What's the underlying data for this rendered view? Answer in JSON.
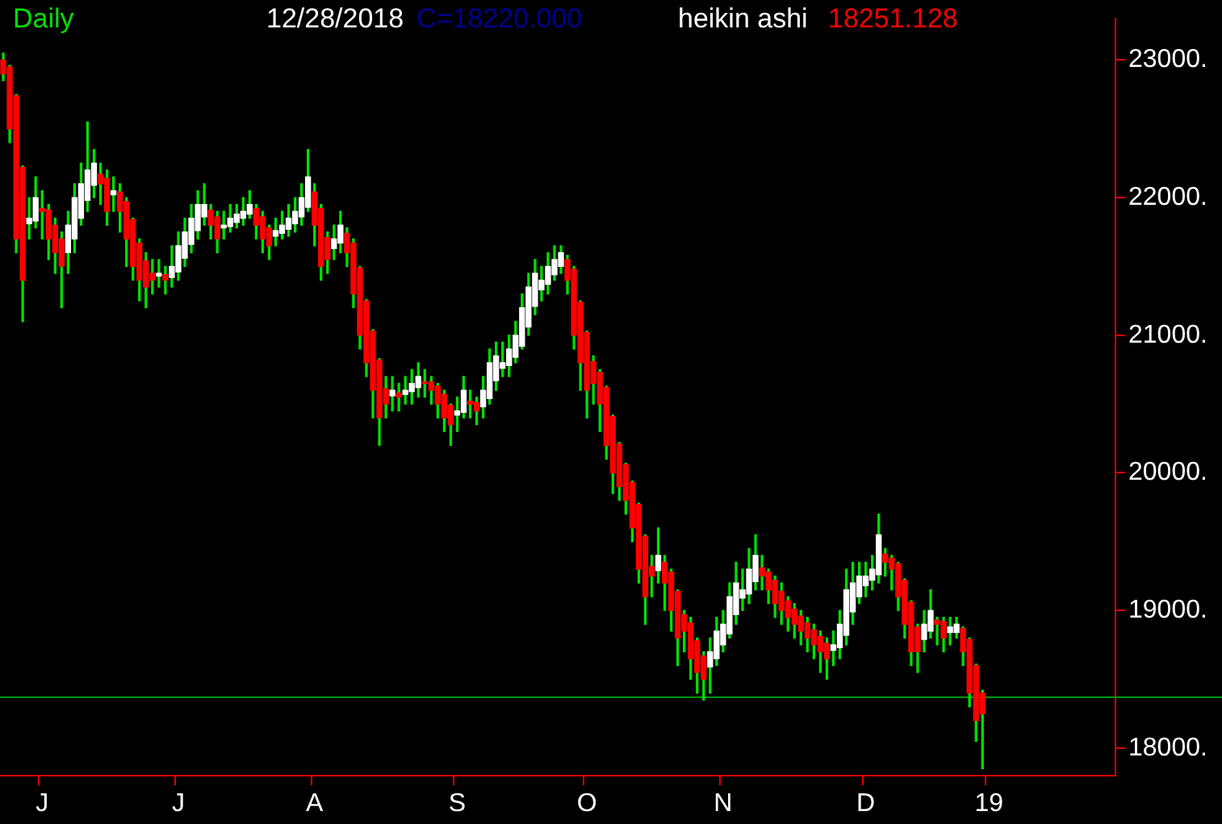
{
  "chart_data": {
    "type": "candlestick",
    "title": "Daily",
    "annotations": [
      "12/28/2018",
      "C=18220.000",
      "heikin ashi",
      "18251.128"
    ],
    "categories": [
      null,
      null,
      null,
      null,
      null,
      null,
      "J",
      null,
      null,
      null,
      null,
      null,
      null,
      null,
      null,
      null,
      null,
      null,
      null,
      null,
      null,
      null,
      null,
      null,
      null,
      null,
      null,
      "J",
      null,
      null,
      null,
      null,
      null,
      null,
      null,
      null,
      null,
      null,
      null,
      null,
      null,
      null,
      null,
      null,
      null,
      null,
      null,
      null,
      "A",
      null,
      null,
      null,
      null,
      null,
      null,
      null,
      null,
      null,
      null,
      null,
      null,
      null,
      null,
      null,
      null,
      null,
      null,
      null,
      null,
      null,
      "S",
      null,
      null,
      null,
      null,
      null,
      null,
      null,
      null,
      null,
      null,
      null,
      null,
      null,
      null,
      null,
      null,
      null,
      null,
      null,
      "O",
      null,
      null,
      null,
      null,
      null,
      null,
      null,
      null,
      null,
      null,
      null,
      null,
      null,
      null,
      null,
      null,
      null,
      null,
      null,
      null,
      "N",
      null,
      null,
      null,
      null,
      null,
      null,
      null,
      null,
      null,
      null,
      null,
      null,
      null,
      null,
      null,
      null,
      null,
      null,
      null,
      null,
      null,
      "D",
      null,
      null,
      null,
      null,
      null,
      null,
      null,
      null,
      null,
      null,
      null,
      null,
      null,
      null,
      null,
      null,
      null,
      null,
      "19",
      null,
      null,
      null,
      null,
      null,
      null,
      null,
      null,
      null,
      null,
      null,
      null,
      null,
      null,
      null,
      null,
      null,
      null,
      null
    ],
    "ohlc": [
      [
        23000,
        23050,
        22850,
        22900
      ],
      [
        22950,
        22960,
        22400,
        22500
      ],
      [
        22740,
        22750,
        21600,
        21700
      ],
      [
        22220,
        22230,
        21100,
        21400
      ],
      [
        21810,
        22000,
        21700,
        21850
      ],
      [
        21830,
        22150,
        21780,
        22000
      ],
      [
        21920,
        22050,
        21700,
        21900
      ],
      [
        21910,
        21950,
        21550,
        21700
      ],
      [
        21800,
        21850,
        21450,
        21600
      ],
      [
        21700,
        21750,
        21200,
        21500
      ],
      [
        21600,
        21900,
        21450,
        21800
      ],
      [
        21700,
        22100,
        21600,
        22000
      ],
      [
        21850,
        22250,
        21800,
        22100
      ],
      [
        21980,
        22550,
        21900,
        22200
      ],
      [
        22090,
        22350,
        22000,
        22250
      ],
      [
        22170,
        22250,
        21950,
        22100
      ],
      [
        22140,
        22200,
        21800,
        21900
      ],
      [
        22020,
        22150,
        21900,
        22050
      ],
      [
        22040,
        22100,
        21750,
        21900
      ],
      [
        21970,
        22000,
        21500,
        21700
      ],
      [
        21840,
        21850,
        21400,
        21500
      ],
      [
        21670,
        21700,
        21250,
        21400
      ],
      [
        21540,
        21600,
        21200,
        21350
      ],
      [
        21450,
        21550,
        21300,
        21400
      ],
      [
        21430,
        21550,
        21350,
        21450
      ],
      [
        21440,
        21500,
        21300,
        21400
      ],
      [
        21420,
        21650,
        21350,
        21500
      ],
      [
        21460,
        21750,
        21400,
        21650
      ],
      [
        21560,
        21850,
        21500,
        21750
      ],
      [
        21660,
        21950,
        21600,
        21850
      ],
      [
        21760,
        22050,
        21700,
        21950
      ],
      [
        21860,
        22100,
        21800,
        21950
      ],
      [
        21910,
        21950,
        21700,
        21800
      ],
      [
        21860,
        21900,
        21600,
        21700
      ],
      [
        21780,
        21900,
        21700,
        21800
      ],
      [
        21790,
        21950,
        21750,
        21850
      ],
      [
        21820,
        21950,
        21780,
        21880
      ],
      [
        21850,
        22000,
        21800,
        21900
      ],
      [
        21880,
        22050,
        21850,
        21950
      ],
      [
        21920,
        21950,
        21700,
        21800
      ],
      [
        21860,
        21900,
        21600,
        21700
      ],
      [
        21780,
        21800,
        21550,
        21650
      ],
      [
        21720,
        21850,
        21650,
        21760
      ],
      [
        21740,
        21900,
        21700,
        21800
      ],
      [
        21770,
        21950,
        21720,
        21850
      ],
      [
        21810,
        22000,
        21750,
        21900
      ],
      [
        21860,
        22100,
        21800,
        22000
      ],
      [
        21930,
        22350,
        21900,
        22150
      ],
      [
        22040,
        22100,
        21650,
        21800
      ],
      [
        21920,
        21950,
        21400,
        21500
      ],
      [
        21710,
        21750,
        21450,
        21550
      ],
      [
        21630,
        21800,
        21550,
        21700
      ],
      [
        21670,
        21900,
        21600,
        21800
      ],
      [
        21740,
        21780,
        21500,
        21600
      ],
      [
        21670,
        21700,
        21200,
        21300
      ],
      [
        21490,
        21500,
        20900,
        21000
      ],
      [
        21250,
        21260,
        20700,
        20800
      ],
      [
        21030,
        21040,
        20400,
        20600
      ],
      [
        20820,
        20830,
        20200,
        20400
      ],
      [
        20610,
        20700,
        20400,
        20500
      ],
      [
        20560,
        20700,
        20450,
        20600
      ],
      [
        20580,
        20650,
        20450,
        20550
      ],
      [
        20570,
        20700,
        20500,
        20600
      ],
      [
        20590,
        20750,
        20500,
        20650
      ],
      [
        20620,
        20800,
        20550,
        20700
      ],
      [
        20660,
        20750,
        20550,
        20650
      ],
      [
        20660,
        20700,
        20500,
        20600
      ],
      [
        20630,
        20650,
        20400,
        20500
      ],
      [
        20570,
        20600,
        20300,
        20400
      ],
      [
        20490,
        20500,
        20200,
        20350
      ],
      [
        20420,
        20550,
        20300,
        20450
      ],
      [
        20440,
        20700,
        20400,
        20600
      ],
      [
        20520,
        20600,
        20400,
        20500
      ],
      [
        20510,
        20550,
        20350,
        20450
      ],
      [
        20480,
        20700,
        20400,
        20600
      ],
      [
        20540,
        20900,
        20500,
        20800
      ],
      [
        20670,
        20950,
        20600,
        20850
      ],
      [
        20760,
        20950,
        20700,
        20800
      ],
      [
        20780,
        21000,
        20700,
        20900
      ],
      [
        20840,
        21100,
        20800,
        21000
      ],
      [
        20920,
        21300,
        20900,
        21200
      ],
      [
        21060,
        21450,
        21000,
        21350
      ],
      [
        21210,
        21550,
        21150,
        21450
      ],
      [
        21330,
        21500,
        21250,
        21400
      ],
      [
        21370,
        21600,
        21300,
        21500
      ],
      [
        21440,
        21650,
        21400,
        21550
      ],
      [
        21500,
        21650,
        21450,
        21600
      ],
      [
        21550,
        21580,
        21300,
        21400
      ],
      [
        21480,
        21500,
        20900,
        21000
      ],
      [
        21240,
        21250,
        20600,
        20800
      ],
      [
        21020,
        21030,
        20400,
        20600
      ],
      [
        20810,
        20850,
        20500,
        20650
      ],
      [
        20730,
        20750,
        20300,
        20500
      ],
      [
        20620,
        20630,
        20100,
        20200
      ],
      [
        20410,
        20420,
        19850,
        20000
      ],
      [
        20210,
        20220,
        19800,
        19900
      ],
      [
        20060,
        20070,
        19700,
        19800
      ],
      [
        19930,
        19940,
        19500,
        19600
      ],
      [
        19770,
        19780,
        19200,
        19300
      ],
      [
        19540,
        19550,
        18900,
        19100
      ],
      [
        19320,
        19400,
        19100,
        19250
      ],
      [
        19290,
        19600,
        19200,
        19400
      ],
      [
        19350,
        19400,
        19000,
        19200
      ],
      [
        19280,
        19300,
        18850,
        19000
      ],
      [
        19140,
        19150,
        18600,
        18800
      ],
      [
        18970,
        19000,
        18700,
        18850
      ],
      [
        18910,
        18950,
        18500,
        18650
      ],
      [
        18780,
        18800,
        18400,
        18550
      ],
      [
        18670,
        18700,
        18350,
        18500
      ],
      [
        18590,
        18800,
        18400,
        18700
      ],
      [
        18650,
        18950,
        18600,
        18850
      ],
      [
        18750,
        19000,
        18700,
        18900
      ],
      [
        18830,
        19200,
        18800,
        19100
      ],
      [
        18970,
        19350,
        18900,
        19200
      ],
      [
        19090,
        19300,
        19000,
        19150
      ],
      [
        19120,
        19450,
        19050,
        19300
      ],
      [
        19210,
        19550,
        19150,
        19400
      ],
      [
        19310,
        19400,
        19150,
        19250
      ],
      [
        19280,
        19300,
        19050,
        19150
      ],
      [
        19220,
        19250,
        18950,
        19050
      ],
      [
        19140,
        19200,
        18900,
        19000
      ],
      [
        19070,
        19100,
        18850,
        18950
      ],
      [
        19010,
        19050,
        18800,
        18900
      ],
      [
        18960,
        19000,
        18750,
        18850
      ],
      [
        18910,
        18950,
        18700,
        18800
      ],
      [
        18860,
        18900,
        18650,
        18750
      ],
      [
        18810,
        18850,
        18550,
        18700
      ],
      [
        18760,
        18800,
        18500,
        18650
      ],
      [
        18710,
        18850,
        18600,
        18750
      ],
      [
        18730,
        19000,
        18650,
        18900
      ],
      [
        18820,
        19300,
        18750,
        19150
      ],
      [
        18990,
        19350,
        18900,
        19200
      ],
      [
        19100,
        19350,
        19050,
        19250
      ],
      [
        19180,
        19350,
        19100,
        19250
      ],
      [
        19220,
        19400,
        19150,
        19300
      ],
      [
        19260,
        19700,
        19200,
        19550
      ],
      [
        19410,
        19450,
        19250,
        19350
      ],
      [
        19380,
        19400,
        19150,
        19300
      ],
      [
        19340,
        19350,
        19000,
        19100
      ],
      [
        19220,
        19230,
        18800,
        18900
      ],
      [
        19060,
        19070,
        18600,
        18700
      ],
      [
        18880,
        18900,
        18550,
        18700
      ],
      [
        18790,
        19000,
        18700,
        18900
      ],
      [
        18850,
        19150,
        18800,
        19000
      ],
      [
        18930,
        18950,
        18750,
        18900
      ],
      [
        18920,
        18950,
        18700,
        18800
      ],
      [
        18840,
        18950,
        18750,
        18880
      ],
      [
        18840,
        18950,
        18800,
        18900
      ],
      [
        18870,
        18880,
        18600,
        18700
      ],
      [
        18790,
        18800,
        18300,
        18400
      ],
      [
        18600,
        18610,
        18050,
        18200
      ],
      [
        18400,
        18420,
        17850,
        18250
      ],
      null,
      null,
      null,
      null,
      null,
      null,
      null,
      null,
      null,
      null,
      null,
      null,
      null,
      null,
      null,
      null,
      null,
      null,
      null,
      null
    ],
    "colors": [
      "#ff0000",
      "#ff0000",
      "#ff0000",
      "#ff0000",
      "#ffffff",
      "#ffffff",
      "#ff0000",
      "#ff0000",
      "#ff0000",
      "#ff0000",
      "#ffffff",
      "#ffffff",
      "#ffffff",
      "#ffffff",
      "#ffffff",
      "#ff0000",
      "#ff0000",
      "#ffffff",
      "#ff0000",
      "#ff0000",
      "#ff0000",
      "#ff0000",
      "#ff0000",
      "#ff0000",
      "#ffffff",
      "#ff0000",
      "#ffffff",
      "#ffffff",
      "#ffffff",
      "#ffffff",
      "#ffffff",
      "#ffffff",
      "#ff0000",
      "#ff0000",
      "#ffffff",
      "#ffffff",
      "#ffffff",
      "#ffffff",
      "#ffffff",
      "#ff0000",
      "#ff0000",
      "#ff0000",
      "#ffffff",
      "#ffffff",
      "#ffffff",
      "#ffffff",
      "#ffffff",
      "#ffffff",
      "#ff0000",
      "#ff0000",
      "#ff0000",
      "#ffffff",
      "#ffffff",
      "#ff0000",
      "#ff0000",
      "#ff0000",
      "#ff0000",
      "#ff0000",
      "#ff0000",
      "#ff0000",
      "#ffffff",
      "#ff0000",
      "#ffffff",
      "#ffffff",
      "#ffffff",
      "#ff0000",
      "#ff0000",
      "#ff0000",
      "#ff0000",
      "#ff0000",
      "#ffffff",
      "#ffffff",
      "#ff0000",
      "#ff0000",
      "#ffffff",
      "#ffffff",
      "#ffffff",
      "#ffffff",
      "#ffffff",
      "#ffffff",
      "#ffffff",
      "#ffffff",
      "#ffffff",
      "#ffffff",
      "#ffffff",
      "#ffffff",
      "#ffffff",
      "#ff0000",
      "#ff0000",
      "#ff0000",
      "#ff0000",
      "#ff0000",
      "#ff0000",
      "#ff0000",
      "#ff0000",
      "#ff0000",
      "#ff0000",
      "#ff0000",
      "#ff0000",
      "#ff0000",
      "#ff0000",
      "#ffffff",
      "#ff0000",
      "#ff0000",
      "#ff0000",
      "#ff0000",
      "#ff0000",
      "#ff0000",
      "#ff0000",
      "#ffffff",
      "#ffffff",
      "#ffffff",
      "#ffffff",
      "#ffffff",
      "#ffffff",
      "#ffffff",
      "#ffffff",
      "#ff0000",
      "#ff0000",
      "#ff0000",
      "#ff0000",
      "#ff0000",
      "#ff0000",
      "#ff0000",
      "#ff0000",
      "#ff0000",
      "#ff0000",
      "#ff0000",
      "#ffffff",
      "#ffffff",
      "#ffffff",
      "#ffffff",
      "#ffffff",
      "#ffffff",
      "#ffffff",
      "#ffffff",
      "#ff0000",
      "#ff0000",
      "#ff0000",
      "#ff0000",
      "#ff0000",
      "#ff0000",
      "#ffffff",
      "#ffffff",
      "#ff0000",
      "#ff0000",
      "#ffffff",
      "#ffffff",
      "#ff0000",
      "#ff0000",
      "#ff0000",
      "#ff0000",
      null,
      null,
      null,
      null,
      null,
      null,
      null,
      null,
      null,
      null,
      null,
      null,
      null,
      null,
      null,
      null,
      null,
      null,
      null,
      null
    ],
    "ylim": [
      17800,
      23300
    ],
    "yticks": [
      {
        "value": 18000,
        "label": "18000."
      },
      {
        "value": 19000,
        "label": "19000."
      },
      {
        "value": 20000,
        "label": "20000."
      },
      {
        "value": 21000,
        "label": "21000."
      },
      {
        "value": 22000,
        "label": "22000."
      },
      {
        "value": 23000,
        "label": "23000."
      }
    ],
    "ref_lines": [
      {
        "axis": "y",
        "value": 18370,
        "color": "#00a000"
      }
    ],
    "grid": false,
    "legend": false
  }
}
